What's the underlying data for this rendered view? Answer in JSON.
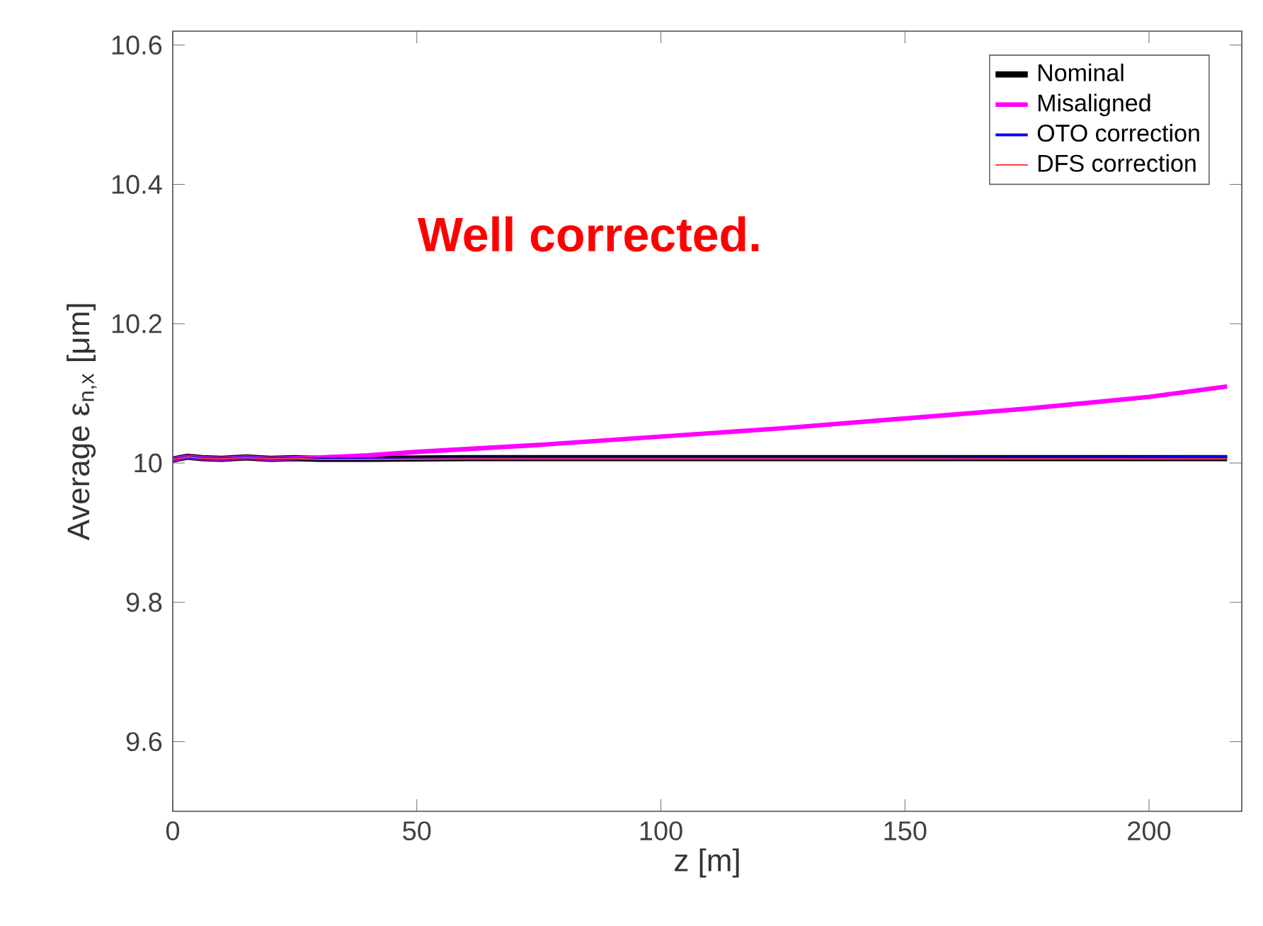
{
  "chart_data": {
    "type": "line",
    "xlabel": "z [m]",
    "ylabel": "Average ε$_{n,x}$ [μm]",
    "annotations": [
      "Well corrected."
    ],
    "xlim": [
      0,
      219
    ],
    "ylim": [
      9.5,
      10.62
    ],
    "xticks": [
      0,
      50,
      100,
      150,
      200
    ],
    "yticks": [
      9.6,
      9.8,
      10,
      10.2,
      10.4,
      10.6
    ],
    "legend": "top right",
    "series": [
      {
        "name": "Nominal",
        "color": "#000000",
        "x": [
          0,
          3,
          6,
          10,
          15,
          20,
          25,
          30,
          40,
          60,
          80,
          100,
          150,
          200,
          216
        ],
        "values": [
          10.005,
          10.009,
          10.007,
          10.006,
          10.008,
          10.006,
          10.007,
          10.006,
          10.006,
          10.007,
          10.007,
          10.007,
          10.007,
          10.007,
          10.007
        ]
      },
      {
        "name": "Misaligned",
        "color": "#ff00ff",
        "x": [
          0,
          3,
          6,
          10,
          15,
          20,
          30,
          40,
          50,
          75,
          100,
          125,
          150,
          175,
          200,
          216
        ],
        "values": [
          10.005,
          10.009,
          10.007,
          10.006,
          10.008,
          10.006,
          10.008,
          10.011,
          10.016,
          10.026,
          10.038,
          10.05,
          10.064,
          10.078,
          10.095,
          10.11
        ]
      },
      {
        "name": "OTO correction",
        "color": "#0000ff",
        "x": [
          0,
          3,
          6,
          10,
          15,
          20,
          25,
          30,
          40,
          60,
          80,
          100,
          150,
          200,
          216
        ],
        "values": [
          10.005,
          10.009,
          10.007,
          10.006,
          10.008,
          10.006,
          10.007,
          10.006,
          10.006,
          10.007,
          10.007,
          10.007,
          10.007,
          10.008,
          10.009
        ]
      },
      {
        "name": "DFS correction",
        "color": "#ff4040",
        "x": [
          0,
          3,
          6,
          10,
          15,
          20,
          25,
          30,
          40,
          60,
          80,
          100,
          150,
          200,
          216
        ],
        "values": [
          10.005,
          10.009,
          10.007,
          10.006,
          10.008,
          10.006,
          10.007,
          10.005,
          10.005,
          10.006,
          10.006,
          10.006,
          10.006,
          10.006,
          10.006
        ]
      }
    ]
  }
}
